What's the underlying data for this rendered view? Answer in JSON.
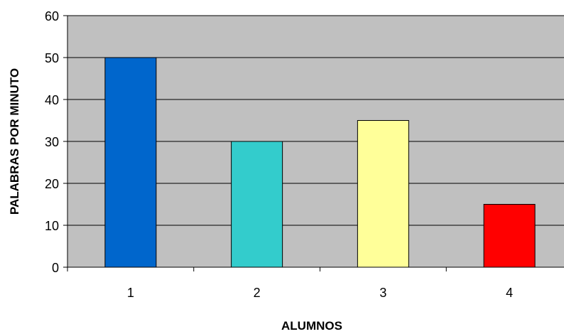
{
  "chart_data": {
    "type": "bar",
    "categories": [
      "1",
      "2",
      "3",
      "4"
    ],
    "values": [
      50,
      30,
      35,
      15
    ],
    "bar_colors": [
      "#0066cc",
      "#33cccc",
      "#ffff99",
      "#ff0000"
    ],
    "plot_background": "#c0c0c0",
    "title": "",
    "xlabel": "ALUMNOS",
    "ylabel": "PALABRAS POR MINUTO",
    "ylim": [
      0,
      60
    ],
    "yticks": [
      "0",
      "10",
      "20",
      "30",
      "40",
      "50",
      "60"
    ],
    "grid": true,
    "legend": "none"
  }
}
